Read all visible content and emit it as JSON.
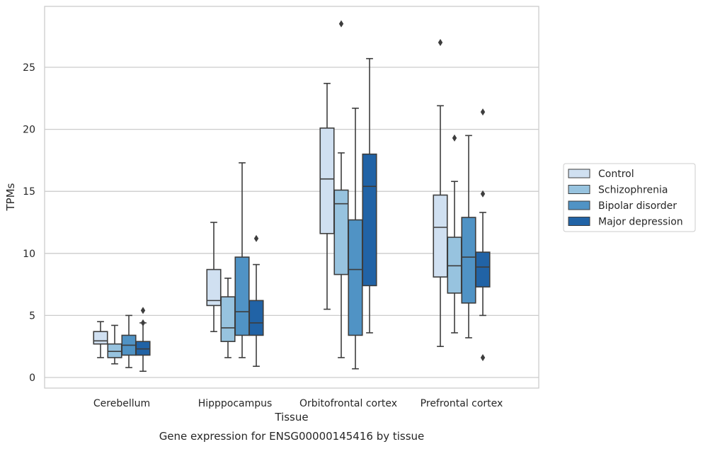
{
  "caption": "Gene expression for ENSG00000145416 by tissue",
  "chart_data": {
    "type": "box",
    "xlabel": "Tissue",
    "ylabel": "TPMs",
    "ylim": [
      -0.8,
      29.5
    ],
    "yticks": [
      0,
      5,
      10,
      15,
      20,
      25
    ],
    "grid": "horizontal",
    "legend_position": "right",
    "categories": [
      "Cerebellum",
      "Hipppocampus",
      "Orbitofrontal cortex",
      "Prefrontal cortex"
    ],
    "series": [
      {
        "name": "Control",
        "color": "#d0e0f1",
        "boxes": [
          {
            "min": 1.6,
            "q1": 2.7,
            "median": 2.95,
            "q3": 3.7,
            "max": 4.5,
            "outliers": []
          },
          {
            "min": 3.7,
            "q1": 5.8,
            "median": 6.2,
            "q3": 8.7,
            "max": 12.5,
            "outliers": []
          },
          {
            "min": 5.5,
            "q1": 11.6,
            "median": 16.0,
            "q3": 20.1,
            "max": 23.7,
            "outliers": []
          },
          {
            "min": 2.5,
            "q1": 8.1,
            "median": 12.1,
            "q3": 14.7,
            "max": 21.9,
            "outliers": [
              27.0
            ]
          }
        ]
      },
      {
        "name": "Schizophrenia",
        "color": "#97c3df",
        "boxes": [
          {
            "min": 1.1,
            "q1": 1.6,
            "median": 2.1,
            "q3": 2.7,
            "max": 4.2,
            "outliers": []
          },
          {
            "min": 1.6,
            "q1": 2.9,
            "median": 4.0,
            "q3": 6.5,
            "max": 8.0,
            "outliers": []
          },
          {
            "min": 1.6,
            "q1": 8.3,
            "median": 14.0,
            "q3": 15.1,
            "max": 18.1,
            "outliers": [
              28.5
            ]
          },
          {
            "min": 3.6,
            "q1": 6.8,
            "median": 9.0,
            "q3": 11.3,
            "max": 15.8,
            "outliers": [
              19.3
            ]
          }
        ]
      },
      {
        "name": "Bipolar disorder",
        "color": "#5093c5",
        "boxes": [
          {
            "min": 0.8,
            "q1": 1.8,
            "median": 2.6,
            "q3": 3.4,
            "max": 5.0,
            "outliers": []
          },
          {
            "min": 1.6,
            "q1": 3.4,
            "median": 5.3,
            "q3": 9.7,
            "max": 17.3,
            "outliers": []
          },
          {
            "min": 0.7,
            "q1": 3.4,
            "median": 8.7,
            "q3": 12.7,
            "max": 21.7,
            "outliers": []
          },
          {
            "min": 3.2,
            "q1": 6.0,
            "median": 9.7,
            "q3": 12.9,
            "max": 19.5,
            "outliers": []
          }
        ]
      },
      {
        "name": "Major depression",
        "color": "#2163a6",
        "boxes": [
          {
            "min": 0.5,
            "q1": 1.8,
            "median": 2.3,
            "q3": 2.9,
            "max": 4.4,
            "outliers": [
              4.4,
              5.4
            ]
          },
          {
            "min": 0.9,
            "q1": 3.4,
            "median": 4.4,
            "q3": 6.2,
            "max": 9.1,
            "outliers": [
              11.2
            ]
          },
          {
            "min": 3.6,
            "q1": 7.4,
            "median": 15.4,
            "q3": 18.0,
            "max": 25.7,
            "outliers": []
          },
          {
            "min": 5.0,
            "q1": 7.3,
            "median": 8.9,
            "q3": 10.1,
            "max": 13.3,
            "outliers": [
              1.6,
              14.8,
              21.4
            ]
          }
        ]
      }
    ]
  }
}
